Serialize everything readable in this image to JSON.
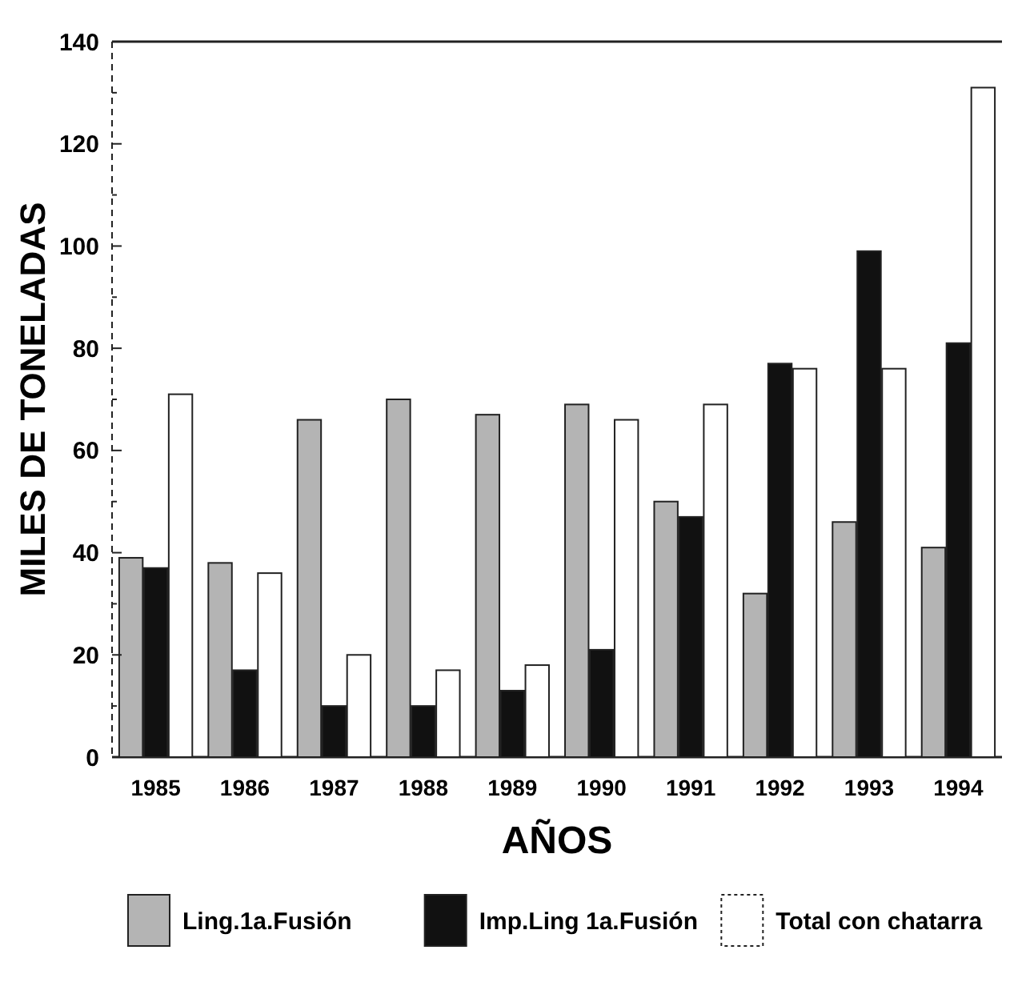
{
  "chart_data": {
    "type": "bar",
    "xlabel": "AÑOS",
    "ylabel": "MILES DE TONELADAS",
    "categories": [
      "1985",
      "1986",
      "1987",
      "1988",
      "1989",
      "1990",
      "1991",
      "1992",
      "1993",
      "1994"
    ],
    "series": [
      {
        "name": "Ling.1a.Fusión",
        "color": "#b4b4b4",
        "values": [
          39,
          38,
          66,
          70,
          67,
          69,
          50,
          32,
          46,
          41
        ]
      },
      {
        "name": "Imp.Ling 1a.Fusión",
        "color": "#111111",
        "values": [
          37,
          17,
          10,
          10,
          13,
          21,
          47,
          77,
          99,
          81
        ]
      },
      {
        "name": "Total con chatarra",
        "color": "#ffffff",
        "values": [
          71,
          36,
          20,
          17,
          18,
          66,
          69,
          76,
          76,
          131
        ]
      }
    ],
    "ylim": [
      0,
      140
    ],
    "yticks": [
      0,
      {
        "value": 10,
        "label": null
      },
      20,
      {
        "value": 30,
        "label": null
      },
      40,
      {
        "value": 50,
        "label": null
      },
      60,
      {
        "value": 70,
        "label": null
      },
      80,
      {
        "value": 90,
        "label": null
      },
      100,
      {
        "value": 110,
        "label": null
      },
      120,
      {
        "value": 130,
        "label": null
      },
      140
    ],
    "grid": false,
    "legend": "bottom"
  }
}
